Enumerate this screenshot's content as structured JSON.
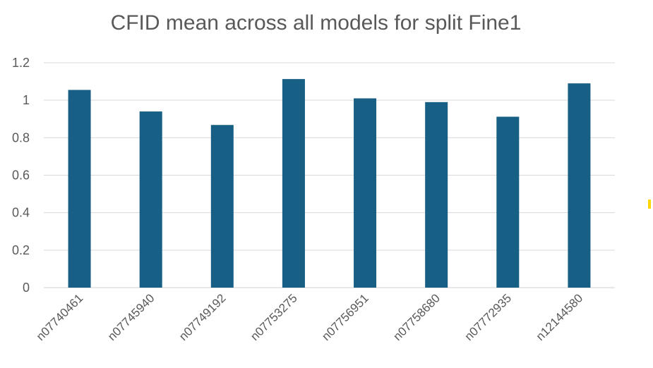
{
  "chart_data": {
    "type": "bar",
    "title": "CFID mean across all models for split Fine1",
    "xlabel": "",
    "ylabel": "",
    "categories": [
      "n07740461",
      "n07745940",
      "n07749192",
      "n07753275",
      "n07756951",
      "n07758680",
      "n07772935",
      "n12144580"
    ],
    "values": [
      1.055,
      0.94,
      0.868,
      1.113,
      1.01,
      0.99,
      0.912,
      1.09
    ],
    "ylim": [
      0,
      1.2
    ],
    "yticks": [
      "0",
      "0.2",
      "0.4",
      "0.6",
      "0.8",
      "1",
      "1.2"
    ],
    "grid": true,
    "legend": "none",
    "bar_color": "#175f84"
  }
}
